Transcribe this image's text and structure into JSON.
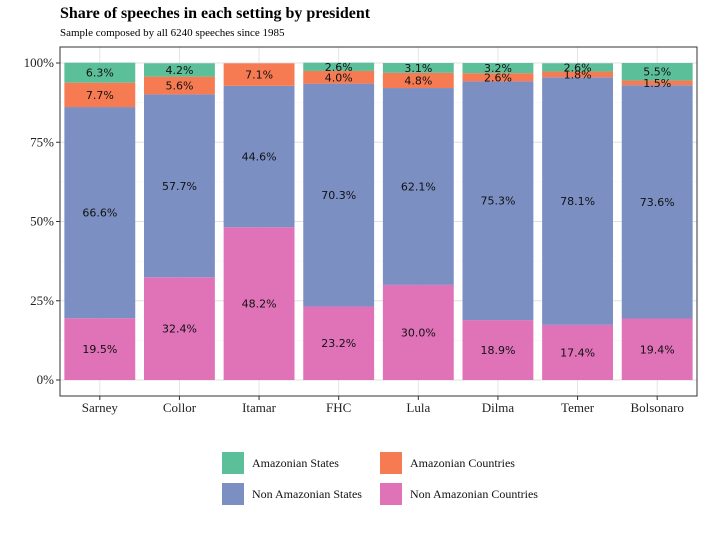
{
  "chart_data": {
    "type": "bar",
    "stacked": true,
    "title": "Share of speeches in each setting by president",
    "subtitle": "Sample composed by all 6240 speeches since 1985",
    "xlabel": "",
    "ylabel": "",
    "ylim": [
      0,
      100
    ],
    "y_ticks": [
      "0%",
      "25%",
      "50%",
      "75%",
      "100%"
    ],
    "y_tick_values": [
      0,
      25,
      50,
      75,
      100
    ],
    "categories": [
      "Sarney",
      "Collor",
      "Itamar",
      "FHC",
      "Lula",
      "Dilma",
      "Temer",
      "Bolsonaro"
    ],
    "series": [
      {
        "name": "Non Amazonian Countries",
        "color": "#e072b8",
        "values": [
          19.5,
          32.4,
          48.2,
          23.2,
          30.0,
          18.9,
          17.4,
          19.4
        ],
        "labels": [
          "19.5%",
          "32.4%",
          "48.2%",
          "23.2%",
          "30.0%",
          "18.9%",
          "17.4%",
          "19.4%"
        ]
      },
      {
        "name": "Non Amazonian States",
        "color": "#7b8fc3",
        "values": [
          66.6,
          57.7,
          44.6,
          70.3,
          62.1,
          75.3,
          78.1,
          73.6
        ],
        "labels": [
          "66.6%",
          "57.7%",
          "44.6%",
          "70.3%",
          "62.1%",
          "75.3%",
          "78.1%",
          "73.6%"
        ]
      },
      {
        "name": "Amazonian Countries",
        "color": "#f77b52",
        "values": [
          7.7,
          5.6,
          7.1,
          4.0,
          4.8,
          2.6,
          1.8,
          1.5
        ],
        "labels": [
          "7.7%",
          "5.6%",
          "7.1%",
          "4.0%",
          "4.8%",
          "2.6%",
          "1.8%",
          "1.5%"
        ]
      },
      {
        "name": "Amazonian States",
        "color": "#5bbf99",
        "values": [
          6.3,
          4.2,
          0.0,
          2.6,
          3.1,
          3.2,
          2.6,
          5.5
        ],
        "labels": [
          "6.3%",
          "4.2%",
          "",
          "2.6%",
          "3.1%",
          "3.2%",
          "2.6%",
          "5.5%"
        ]
      }
    ],
    "legend": {
      "placement": "bottom",
      "order": [
        "Amazonian States",
        "Amazonian Countries",
        "Non Amazonian States",
        "Non Amazonian Countries"
      ]
    },
    "grid": true
  }
}
